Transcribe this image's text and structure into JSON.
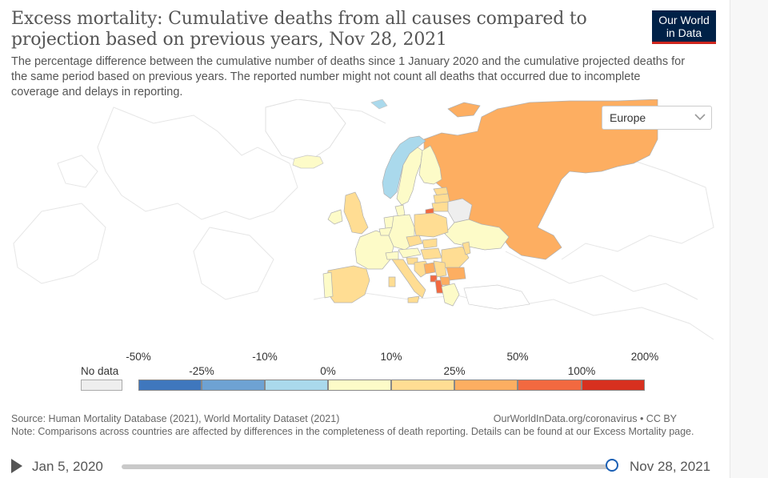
{
  "header": {
    "title_line1": "Excess mortality: Cumulative deaths from all causes compared to",
    "title_line2": "projection based on previous years, Nov 28, 2021",
    "subtitle": "The percentage difference between the cumulative number of deaths since 1 January 2020 and the cumulative projected deaths for the same period based on previous years. The reported number might not count all deaths that occurred due to incomplete coverage and delays in reporting.",
    "logo_line1": "Our World",
    "logo_line2": "in Data"
  },
  "region_select": {
    "value": "Europe",
    "icon": "chevron-down-icon"
  },
  "legend": {
    "no_data_label": "No data",
    "top_ticks": [
      "-50%",
      "-10%",
      "10%",
      "50%",
      "200%"
    ],
    "bottom_ticks": [
      "-25%",
      "0%",
      "25%",
      "100%"
    ],
    "bins": [
      {
        "color": "#3f77bd"
      },
      {
        "color": "#6ea2d3"
      },
      {
        "color": "#aad9ec"
      },
      {
        "color": "#fdfbc8"
      },
      {
        "color": "#ffdd93"
      },
      {
        "color": "#fdae61"
      },
      {
        "color": "#f26940"
      },
      {
        "color": "#d7301f"
      }
    ]
  },
  "footer": {
    "source": "Source: Human Mortality Database (2021), World Mortality Dataset (2021)",
    "link": "OurWorldInData.org/coronavirus • CC BY",
    "note": "Note: Comparisons across countries are affected by differences in the completeness of death reporting. Details can be found at our Excess Mortality page."
  },
  "timeline": {
    "start": "Jan 5, 2020",
    "end": "Nov 28, 2021",
    "position": 1.0
  },
  "colors": {
    "russia": "#fdae61",
    "no_data": "#eeeeee",
    "background_land": "#ffffff",
    "outline": "#e0e0e0"
  }
}
